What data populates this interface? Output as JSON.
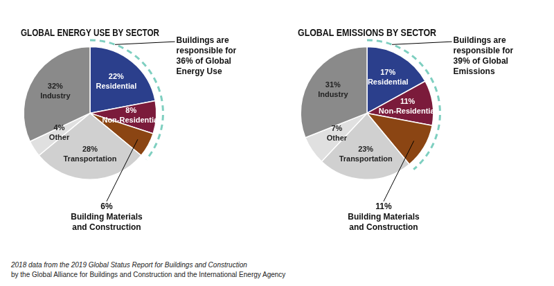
{
  "chart_data": [
    {
      "type": "pie",
      "title": "GLOBAL ENERGY USE BY SECTOR",
      "categories": [
        "Residential",
        "Non-Residential",
        "Building Materials\nand Construction",
        "Transportation",
        "Other",
        "Industry"
      ],
      "values": [
        22,
        8,
        6,
        28,
        4,
        32
      ],
      "value_labels": [
        "22%",
        "8%",
        "6%",
        "28%",
        "4%",
        "32%"
      ],
      "colors": [
        "#2b3f8c",
        "#7b1b3b",
        "#8b4513",
        "#d0d0d0",
        "#e0e0e0",
        "#8a8a8a"
      ],
      "data_labels": true,
      "legend": false,
      "annotations": [
        {
          "text": "Buildings are\nresponsible for\n36% of Global\nEnergy Use",
          "value": 36,
          "color": "#7ecfc0"
        }
      ]
    },
    {
      "type": "pie",
      "title": "GLOBAL EMISSIONS BY SECTOR",
      "categories": [
        "Residential",
        "Non-Residential",
        "Building Materials\nand Construction",
        "Transportation",
        "Other",
        "Industry"
      ],
      "values": [
        17,
        11,
        11,
        23,
        7,
        31
      ],
      "value_labels": [
        "17%",
        "11%",
        "11%",
        "23%",
        "7%",
        "31%"
      ],
      "colors": [
        "#2b3f8c",
        "#7b1b3b",
        "#8b4513",
        "#d0d0d0",
        "#e0e0e0",
        "#8a8a8a"
      ],
      "data_labels": true,
      "legend": false,
      "annotations": [
        {
          "text": "Buildings are\nresponsible for\n39% of Global\nEmissions",
          "value": 39,
          "color": "#7ecfc0"
        }
      ]
    }
  ],
  "footnote": [
    "2018 data from the 2019 Global Status Report for Buildings and Construction",
    "by the Global Alliance for Buildings and Construction and the International Energy Agency"
  ]
}
